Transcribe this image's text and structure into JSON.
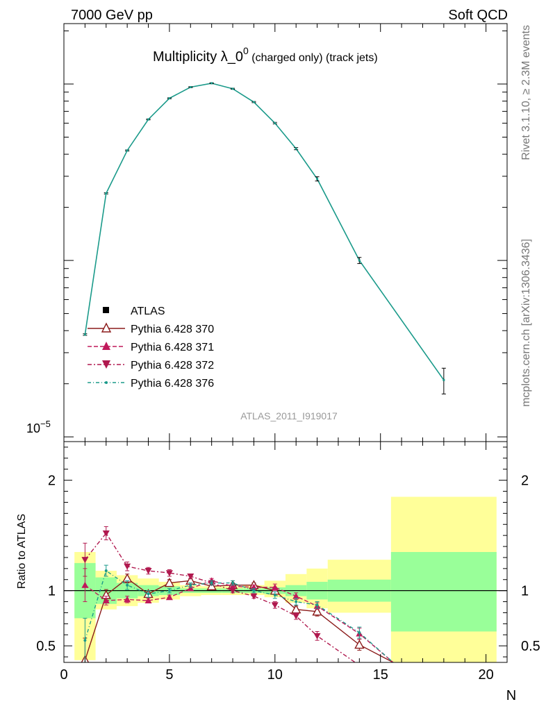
{
  "header": {
    "left": "7000 GeV pp",
    "right": "Soft QCD"
  },
  "side_labels": {
    "top": "Rivet 3.1.10, ≥ 2.3M events",
    "bottom": "mcplots.cern.ch [arXiv:1306.3436]"
  },
  "chart_data": {
    "type": "line",
    "title": "Multiplicity λ_0⁰ (charged only) (track jets)",
    "title_main": "Multiplicity λ_0",
    "title_sup": "0",
    "title_sub": " (charged only) (track jets)",
    "watermark": "ATLAS_2011_I919017",
    "xlabel": "N",
    "xlim": [
      0,
      21
    ],
    "x_ticks": [
      "0",
      "5",
      "10",
      "15",
      "20"
    ],
    "main": {
      "yscale": "log",
      "ytick_label": "10",
      "ytick_exp": "−5",
      "ylim": [
        9.4e-06,
        0.0022
      ],
      "data": {
        "name": "ATLAS",
        "x": [
          1,
          2,
          3,
          4,
          5,
          6,
          7,
          8,
          9,
          10,
          11,
          12,
          14,
          18
        ],
        "y": [
          3.8e-05,
          0.00024,
          0.00042,
          0.00063,
          0.00083,
          0.00096,
          0.00101,
          0.00094,
          0.00079,
          0.0006,
          0.00043,
          0.00029,
          0.0001,
          2.1e-05
        ],
        "err": [
          4e-07,
          2e-06,
          3e-06,
          4e-06,
          5e-06,
          6e-06,
          6e-06,
          6e-06,
          6e-06,
          6e-06,
          6e-06,
          8e-06,
          4e-06,
          3.5e-06
        ]
      }
    },
    "ratio": {
      "ylabel": "Ratio to ATLAS",
      "ylim": [
        0.35,
        2.35
      ],
      "y_ticks": [
        "0.5",
        "1",
        "2"
      ],
      "bands": {
        "edges": [
          0.5,
          1.5,
          2.5,
          3.5,
          4.5,
          5.5,
          6.5,
          7.5,
          8.5,
          9.5,
          10.5,
          11.5,
          12.5,
          15.5,
          20.5
        ],
        "stat_lo": [
          0.75,
          0.88,
          0.93,
          0.95,
          0.96,
          0.98,
          0.98,
          0.98,
          0.98,
          0.97,
          0.95,
          0.92,
          0.9,
          0.63
        ],
        "stat_hi": [
          1.25,
          1.12,
          1.07,
          1.05,
          1.04,
          1.02,
          1.02,
          1.02,
          1.02,
          1.03,
          1.05,
          1.08,
          1.1,
          1.35
        ],
        "tot_lo": [
          0.37,
          0.83,
          0.86,
          0.89,
          0.92,
          0.95,
          0.96,
          0.96,
          0.96,
          0.94,
          0.89,
          0.84,
          0.8,
          0.35
        ],
        "tot_hi": [
          1.35,
          1.18,
          1.14,
          1.11,
          1.08,
          1.05,
          1.04,
          1.04,
          1.05,
          1.09,
          1.15,
          1.2,
          1.28,
          1.85
        ]
      },
      "series": [
        {
          "name": "Pythia 6.428 370",
          "color": "#8b1a1a",
          "dash": "",
          "marker": "triangle-up-open",
          "x": [
            1,
            2,
            3,
            4,
            5,
            6,
            7,
            8,
            9,
            10,
            11,
            12,
            14
          ],
          "y": [
            0.37,
            0.96,
            1.11,
            0.97,
            1.07,
            1.09,
            1.04,
            1.05,
            1.05,
            1.0,
            0.83,
            0.81,
            0.51
          ],
          "err": [
            0.2,
            0.05,
            0.04,
            0.03,
            0.03,
            0.02,
            0.02,
            0.02,
            0.02,
            0.03,
            0.03,
            0.04,
            0.05
          ],
          "tail_x": 15.6,
          "tail_y": 0.35
        },
        {
          "name": "Pythia 6.428 371",
          "color": "#c0195a",
          "dash": "6,3",
          "marker": "triangle-up",
          "x": [
            1,
            2,
            3,
            4,
            5,
            6,
            7,
            8,
            9,
            10,
            11,
            12,
            14
          ],
          "y": [
            1.05,
            0.91,
            0.92,
            0.91,
            0.94,
            1.02,
            1.09,
            1.04,
            1.03,
            1.03,
            0.95,
            0.86,
            0.61
          ],
          "err": [
            0.15,
            0.04,
            0.03,
            0.02,
            0.02,
            0.02,
            0.02,
            0.02,
            0.02,
            0.03,
            0.03,
            0.03,
            0.05
          ],
          "tail_x": 15.6,
          "tail_y": 0.35
        },
        {
          "name": "Pythia 6.428 372",
          "color": "#b0184e",
          "dash": "6,3,2,3",
          "marker": "triangle-down",
          "x": [
            1,
            2,
            3,
            4,
            5,
            6,
            7,
            8,
            9,
            10,
            11,
            12
          ],
          "y": [
            1.28,
            1.52,
            1.22,
            1.18,
            1.16,
            1.13,
            1.07,
            1.0,
            0.95,
            0.87,
            0.77,
            0.59
          ],
          "err": [
            0.15,
            0.06,
            0.04,
            0.03,
            0.03,
            0.02,
            0.02,
            0.02,
            0.02,
            0.03,
            0.03,
            0.04
          ],
          "tail_x": 13.8,
          "tail_y": 0.35
        },
        {
          "name": "Pythia 6.428 376",
          "color": "#1a9a8a",
          "dash": "5,3,1,3",
          "marker": "dot",
          "x": [
            1,
            2,
            3,
            4,
            5,
            6,
            7,
            8,
            9,
            10,
            11,
            12,
            14
          ],
          "y": [
            0.55,
            1.18,
            1.05,
            0.97,
            1.0,
            1.05,
            1.07,
            1.07,
            1.0,
            0.96,
            0.9,
            0.87,
            0.62
          ],
          "err": [
            0.2,
            0.05,
            0.04,
            0.03,
            0.02,
            0.02,
            0.02,
            0.02,
            0.02,
            0.03,
            0.03,
            0.03,
            0.05
          ],
          "tail_x": 15.6,
          "tail_y": 0.35
        }
      ]
    },
    "legend": {
      "placement": "lower-left",
      "entries": [
        "ATLAS",
        "Pythia 6.428 370",
        "Pythia 6.428 371",
        "Pythia 6.428 372",
        "Pythia 6.428 376"
      ]
    },
    "colors": {
      "mc_main": "#1a9a8a",
      "stat_band": "#99ff99",
      "total_band": "#ffff99"
    }
  }
}
